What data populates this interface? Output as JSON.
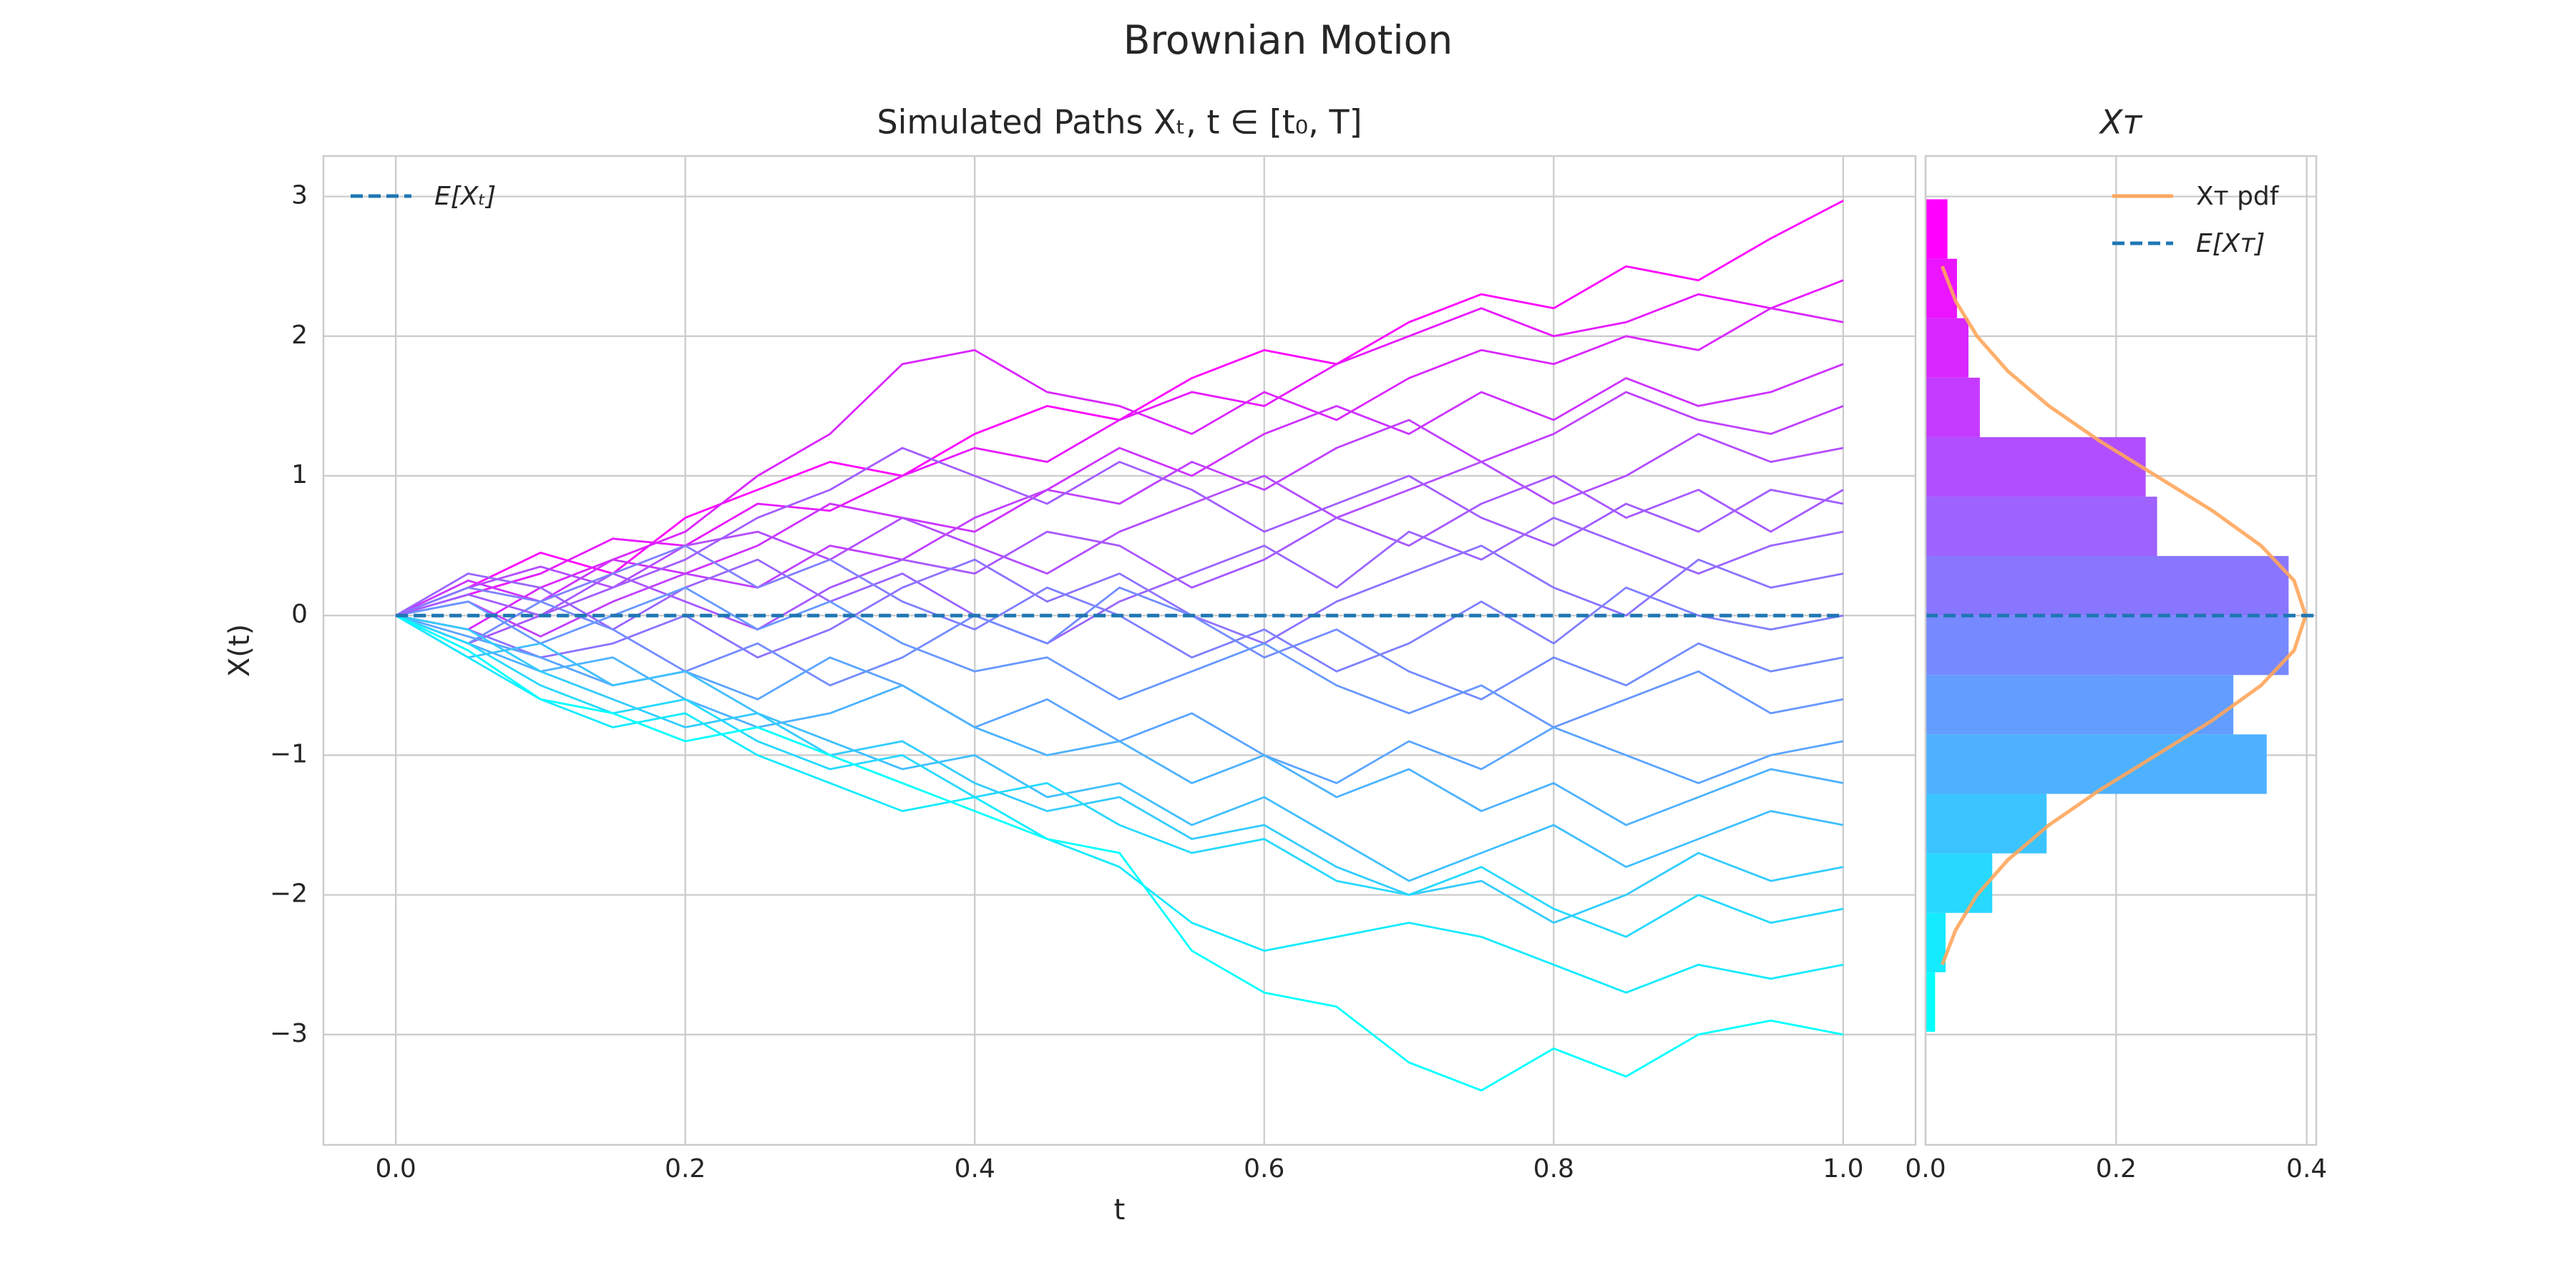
{
  "title": "Brownian Motion",
  "chart_data": [
    {
      "type": "line",
      "title": "Simulated Paths Xₜ, t ∈ [t₀, T]",
      "xlabel": "t",
      "ylabel": "X(t)",
      "x": [
        0,
        0.05,
        0.1,
        0.15,
        0.2,
        0.25,
        0.3,
        0.35,
        0.4,
        0.45,
        0.5,
        0.55,
        0.6,
        0.65,
        0.7,
        0.75,
        0.8,
        0.85,
        0.9,
        0.95,
        1.0
      ],
      "series": [
        {
          "values": [
            0,
            0.2,
            0.45,
            0.3,
            0.7,
            0.9,
            1.1,
            1.0,
            1.3,
            1.5,
            1.4,
            1.7,
            1.9,
            1.8,
            2.1,
            2.3,
            2.2,
            2.5,
            2.4,
            2.7,
            2.97
          ]
        },
        {
          "values": [
            0,
            0.15,
            0.3,
            0.55,
            0.5,
            0.8,
            0.75,
            1.0,
            1.2,
            1.1,
            1.4,
            1.6,
            1.5,
            1.8,
            2.0,
            2.2,
            2.0,
            2.1,
            2.3,
            2.2,
            2.4
          ]
        },
        {
          "values": [
            0,
            -0.1,
            0.2,
            0.4,
            0.6,
            1.0,
            1.3,
            1.8,
            1.9,
            1.6,
            1.5,
            1.3,
            1.6,
            1.4,
            1.7,
            1.9,
            1.8,
            2.0,
            1.9,
            2.2,
            2.1
          ]
        },
        {
          "values": [
            0,
            0.25,
            0.1,
            0.4,
            0.3,
            0.5,
            0.8,
            0.7,
            0.6,
            0.9,
            1.2,
            1.0,
            1.3,
            1.5,
            1.3,
            1.6,
            1.4,
            1.7,
            1.5,
            1.6,
            1.8
          ]
        },
        {
          "values": [
            0,
            0.1,
            -0.15,
            0.1,
            0.3,
            0.2,
            0.5,
            0.4,
            0.7,
            0.9,
            0.8,
            1.1,
            0.9,
            1.2,
            1.4,
            1.1,
            1.3,
            1.6,
            1.4,
            1.3,
            1.5
          ]
        },
        {
          "values": [
            0,
            0.2,
            0.35,
            0.2,
            0.5,
            0.6,
            0.4,
            0.7,
            0.5,
            0.3,
            0.6,
            0.8,
            1.0,
            0.7,
            0.9,
            1.1,
            0.8,
            1.0,
            1.3,
            1.1,
            1.2
          ]
        },
        {
          "values": [
            0,
            -0.2,
            0.0,
            0.3,
            0.1,
            -0.1,
            0.2,
            0.4,
            0.3,
            0.6,
            0.5,
            0.2,
            0.4,
            0.7,
            0.5,
            0.8,
            1.0,
            0.7,
            0.9,
            0.6,
            0.9
          ]
        },
        {
          "values": [
            0,
            0.3,
            0.2,
            -0.1,
            0.2,
            0.4,
            0.1,
            0.3,
            0.0,
            -0.2,
            0.1,
            0.3,
            0.5,
            0.2,
            0.6,
            0.4,
            0.7,
            0.5,
            0.3,
            0.5,
            0.6
          ]
        },
        {
          "values": [
            0,
            -0.1,
            -0.3,
            -0.2,
            0.0,
            -0.3,
            -0.1,
            0.2,
            0.4,
            0.1,
            0.3,
            0.0,
            -0.2,
            0.1,
            0.3,
            0.5,
            0.2,
            0.0,
            0.4,
            0.2,
            0.3
          ]
        },
        {
          "values": [
            0,
            0.2,
            0.1,
            0.3,
            0.5,
            0.2,
            0.4,
            0.1,
            -0.1,
            0.2,
            0.0,
            -0.3,
            -0.1,
            -0.4,
            -0.2,
            0.1,
            -0.2,
            0.2,
            0.0,
            -0.1,
            0.0
          ]
        },
        {
          "values": [
            0,
            -0.2,
            0.1,
            -0.1,
            -0.4,
            -0.2,
            -0.5,
            -0.3,
            0.0,
            -0.2,
            0.2,
            0.0,
            -0.3,
            -0.1,
            -0.4,
            -0.6,
            -0.3,
            -0.5,
            -0.2,
            -0.4,
            -0.3
          ]
        },
        {
          "values": [
            0,
            0.1,
            -0.2,
            0.0,
            0.2,
            -0.1,
            0.1,
            -0.2,
            -0.4,
            -0.3,
            -0.6,
            -0.4,
            -0.2,
            -0.5,
            -0.7,
            -0.5,
            -0.8,
            -0.6,
            -0.4,
            -0.7,
            -0.6
          ]
        },
        {
          "values": [
            0,
            -0.15,
            -0.3,
            -0.5,
            -0.4,
            -0.6,
            -0.3,
            -0.5,
            -0.8,
            -0.6,
            -0.9,
            -0.7,
            -1.0,
            -1.2,
            -0.9,
            -1.1,
            -0.8,
            -1.0,
            -1.2,
            -1.0,
            -0.9
          ]
        },
        {
          "values": [
            0,
            -0.2,
            -0.4,
            -0.3,
            -0.6,
            -0.8,
            -0.7,
            -0.5,
            -0.8,
            -1.0,
            -0.9,
            -1.2,
            -1.0,
            -1.3,
            -1.1,
            -1.4,
            -1.2,
            -1.5,
            -1.3,
            -1.1,
            -1.2
          ]
        },
        {
          "values": [
            0,
            -0.3,
            -0.2,
            -0.5,
            -0.4,
            -0.7,
            -0.9,
            -1.1,
            -1.0,
            -1.3,
            -1.2,
            -1.5,
            -1.3,
            -1.6,
            -1.9,
            -1.7,
            -1.5,
            -1.8,
            -1.6,
            -1.4,
            -1.5
          ]
        },
        {
          "values": [
            0,
            -0.1,
            -0.4,
            -0.6,
            -0.8,
            -0.7,
            -1.0,
            -0.9,
            -1.2,
            -1.4,
            -1.3,
            -1.6,
            -1.5,
            -1.8,
            -2.0,
            -1.9,
            -2.2,
            -2.0,
            -1.7,
            -1.9,
            -1.8
          ]
        },
        {
          "values": [
            0,
            -0.2,
            -0.5,
            -0.7,
            -0.6,
            -0.9,
            -1.1,
            -1.0,
            -1.3,
            -1.2,
            -1.5,
            -1.7,
            -1.6,
            -1.9,
            -2.0,
            -1.8,
            -2.1,
            -2.3,
            -2.0,
            -2.2,
            -2.1
          ]
        },
        {
          "values": [
            0,
            -0.3,
            -0.6,
            -0.8,
            -0.7,
            -1.0,
            -1.2,
            -1.4,
            -1.3,
            -1.6,
            -1.8,
            -2.2,
            -2.4,
            -2.3,
            -2.2,
            -2.3,
            -2.5,
            -2.7,
            -2.5,
            -2.6,
            -2.5
          ]
        },
        {
          "values": [
            0,
            -0.25,
            -0.6,
            -0.7,
            -0.9,
            -0.8,
            -1.0,
            -1.2,
            -1.4,
            -1.6,
            -1.7,
            -2.4,
            -2.7,
            -2.8,
            -3.2,
            -3.4,
            -3.1,
            -3.3,
            -3.0,
            -2.9,
            -3.0
          ]
        },
        {
          "values": [
            0,
            0.15,
            0.0,
            0.2,
            0.4,
            0.7,
            0.9,
            1.2,
            1.0,
            0.8,
            1.1,
            0.9,
            0.6,
            0.8,
            1.0,
            0.7,
            0.5,
            0.8,
            0.6,
            0.9,
            0.8
          ]
        }
      ],
      "colormap": "cool",
      "mean": {
        "name": "E[Xₜ]",
        "value": 0,
        "color": "#1f77b4"
      },
      "legend": "upper left",
      "xlim": [
        -0.05,
        1.05
      ],
      "xticks": [
        {
          "value": 0,
          "label": "0.0"
        },
        0.2,
        0.4,
        0.6,
        0.8,
        {
          "value": 1,
          "label": "1.0"
        }
      ],
      "ylim": [
        -3.79,
        3.29
      ],
      "yticks": [
        {
          "value": -3,
          "label": "−3"
        },
        {
          "value": -2,
          "label": "−2"
        },
        {
          "value": -1,
          "label": "−1"
        },
        0,
        1,
        2,
        3
      ],
      "grid": true
    },
    {
      "type": "histogram",
      "title": "Xᴛ",
      "bins": [
        -2.98,
        -2.554,
        -2.129,
        -1.703,
        -1.277,
        -0.851,
        -0.426,
        0,
        0.426,
        0.851,
        1.277,
        1.703,
        2.129,
        2.554,
        2.98
      ],
      "values": [
        0.01,
        0.021,
        0.07,
        0.127,
        0.358,
        0.323,
        0.381,
        0.381,
        0.243,
        0.231,
        0.057,
        0.045,
        0.033,
        0.023
      ],
      "colormap": "cool",
      "pdf": {
        "name": "Xᴛ pdf",
        "color": "#ffa65c",
        "y": [
          -2.5,
          -2.25,
          -2,
          -1.75,
          -1.5,
          -1.25,
          -1,
          -0.75,
          -0.5,
          -0.25,
          0,
          0.25,
          0.5,
          0.75,
          1,
          1.25,
          1.5,
          1.75,
          2,
          2.25,
          2.5
        ],
        "values": [
          0.0175,
          0.0317,
          0.054,
          0.0863,
          0.1295,
          0.1826,
          0.242,
          0.3011,
          0.3521,
          0.3867,
          0.3989,
          0.3867,
          0.3521,
          0.3011,
          0.242,
          0.1826,
          0.1295,
          0.0863,
          0.054,
          0.0317,
          0.0175
        ]
      },
      "mean": {
        "name": "E[Xᴛ]",
        "value": 0,
        "color": "#1f77b4"
      },
      "legend": "upper right",
      "xlim": [
        0,
        0.41
      ],
      "xticks": [
        {
          "value": 0,
          "label": "0.0"
        },
        0.2,
        0.4
      ],
      "ylim": [
        -3.79,
        3.29
      ],
      "yticks": [
        -3,
        -2,
        -1,
        0,
        1,
        2,
        3
      ],
      "grid": true
    }
  ]
}
